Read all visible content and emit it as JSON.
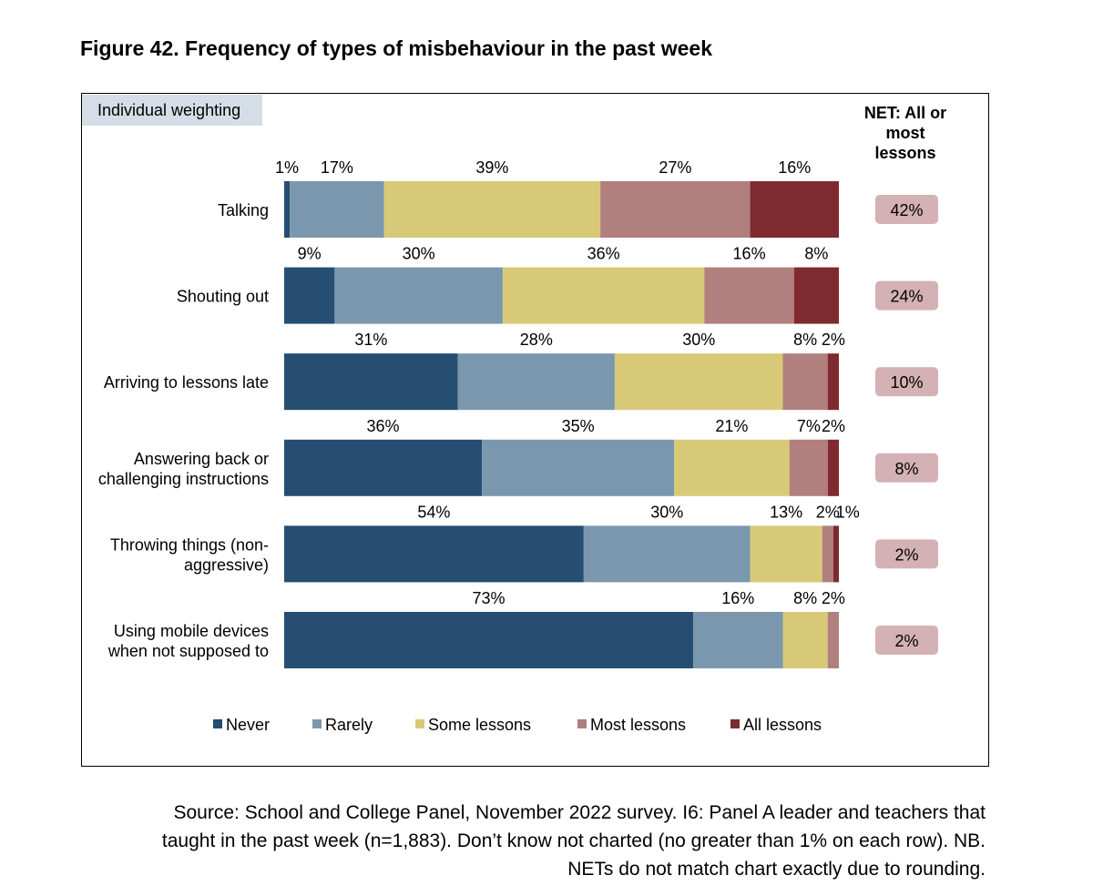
{
  "chart_data": {
    "type": "bar",
    "orientation": "horizontal",
    "stacked": true,
    "title": "Figure 42. Frequency of types of misbehaviour in the past week",
    "subtitle": "Individual weighting",
    "net_header": [
      "NET: All or",
      "most",
      "lessons"
    ],
    "categories": [
      [
        "Talking"
      ],
      [
        "Shouting out"
      ],
      [
        "Arriving to lessons late"
      ],
      [
        "Answering back or",
        "challenging instructions"
      ],
      [
        "Throwing things (non-",
        "aggressive)"
      ],
      [
        "Using mobile devices",
        "when not supposed to"
      ]
    ],
    "series": [
      {
        "name": "Never",
        "color": "#254e72",
        "values": [
          1,
          9,
          31,
          36,
          54,
          73
        ]
      },
      {
        "name": "Rarely",
        "color": "#7b97ad",
        "values": [
          17,
          30,
          28,
          35,
          30,
          16
        ]
      },
      {
        "name": "Some lessons",
        "color": "#d8c978",
        "values": [
          39,
          36,
          30,
          21,
          13,
          8
        ]
      },
      {
        "name": "Most lessons",
        "color": "#b07f7e",
        "values": [
          27,
          16,
          8,
          7,
          2,
          2
        ]
      },
      {
        "name": "All lessons",
        "color": "#7f2a2e",
        "values": [
          16,
          8,
          2,
          2,
          1,
          0
        ]
      }
    ],
    "net_values": [
      "42%",
      "24%",
      "10%",
      "8%",
      "2%",
      "2%"
    ],
    "net_badge_color": "#d4b1b4",
    "legend_position": "bottom",
    "xlim": [
      0,
      100
    ],
    "source": [
      "Source: School and College Panel, November 2022 survey. I6: Panel A leader and teachers that",
      "taught in the past week (n=1,883). Don’t know not charted (no greater than 1% on each row). NB.",
      "NETs do not match chart exactly due to rounding."
    ]
  }
}
